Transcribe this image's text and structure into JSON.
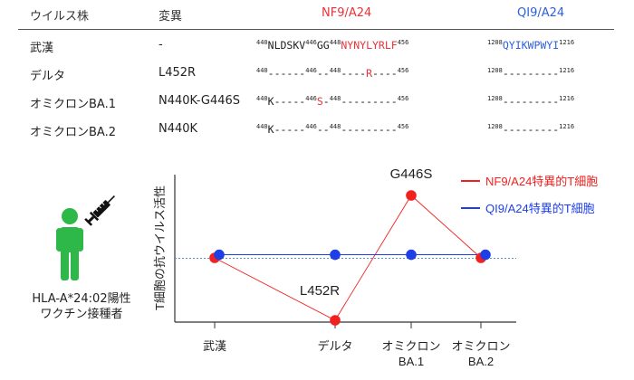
{
  "table": {
    "headers": {
      "strain": "ウイルス株",
      "mutation": "変異",
      "epitope_nf9": "NF9/A24",
      "epitope_qi9": "QI9/A24"
    },
    "rows": [
      {
        "strain": "武漢",
        "mutation": "-",
        "nf9": {
          "s1": "440",
          "a": "NLDSKV",
          "s2": "446",
          "b": "GG",
          "s3": "448",
          "c": "NYNYLYRLF",
          "s4": "456"
        },
        "qi9": {
          "s1": "1208",
          "a": "QYIKWPWYI",
          "s2": "1216"
        }
      },
      {
        "strain": "デルタ",
        "mutation": "L452R",
        "nf9": {
          "s1": "440",
          "a": "------",
          "s2": "446",
          "b": "--",
          "s3": "448",
          "c1": "----",
          "m": "R",
          "c2": "----",
          "s4": "456"
        },
        "qi9": {
          "s1": "1208",
          "a": "---------",
          "s2": "1216"
        }
      },
      {
        "strain": "オミクロンBA.1",
        "mutation": "N440K-G446S",
        "nf9": {
          "s1": "440",
          "a": "K-----",
          "s2": "446",
          "m": "S",
          "b": "-",
          "s3": "448",
          "c": "---------",
          "s4": "456"
        },
        "qi9": {
          "s1": "1208",
          "a": "---------",
          "s2": "1216"
        }
      },
      {
        "strain": "オミクロンBA.2",
        "mutation": "N440K",
        "nf9": {
          "s1": "440",
          "a": "K-----",
          "s2": "446",
          "b": "--",
          "s3": "448",
          "c": "---------",
          "s4": "456"
        },
        "qi9": {
          "s1": "1208",
          "a": "---------",
          "s2": "1216"
        }
      }
    ]
  },
  "person": {
    "label_line1": "HLA-A*24:02陽性",
    "label_line2": "ワクチン接種者",
    "icon": "person-icon",
    "syringe": "syringe-icon"
  },
  "chart_data": {
    "type": "line",
    "ylabel": "T細胞の抗ウイルス活性",
    "categories": [
      "武漢",
      "デルタ",
      "オミクロン\nBA.1",
      "オミクロン\nBA.2"
    ],
    "tick_labels": [
      [
        "武漢"
      ],
      [
        "デルタ"
      ],
      [
        "オミクロン",
        "BA.1"
      ],
      [
        "オミクロン",
        "BA.2"
      ]
    ],
    "series": [
      {
        "name": "NF9/A24特異的T細胞",
        "color": "#f0211f",
        "values": [
          1.0,
          0.0,
          2.0,
          1.0
        ]
      },
      {
        "name": "QI9/A24特異的T細胞",
        "color": "#1f3fe6",
        "values": [
          1.05,
          1.05,
          1.05,
          1.05
        ]
      }
    ],
    "baseline": 1.0,
    "annotations": [
      {
        "category": "デルタ",
        "text": "L452R"
      },
      {
        "category": "オミクロン\nBA.1",
        "text": "G446S"
      }
    ],
    "legend_position": "top-right",
    "grid": false
  },
  "colors": {
    "red": "#f0211f",
    "blue": "#1f3fe6",
    "person": "#2fb84a",
    "dotted": "#5b8fd6"
  }
}
